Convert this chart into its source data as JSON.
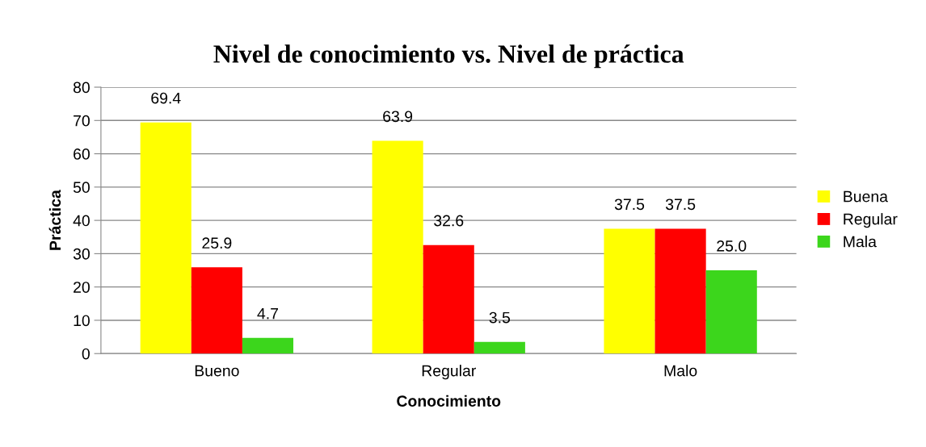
{
  "chart_data": {
    "type": "bar",
    "title": "Nivel de conocimiento vs. Nivel de práctica",
    "xlabel": "Conocimiento",
    "ylabel": "Práctica",
    "categories": [
      "Bueno",
      "Regular",
      "Malo"
    ],
    "series": [
      {
        "name": "Buena",
        "color": "#ffff00",
        "values": [
          69.4,
          63.9,
          37.5
        ],
        "value_labels": [
          "69.4",
          "63.9",
          "37.5"
        ]
      },
      {
        "name": "Regular",
        "color": "#ff0000",
        "values": [
          25.9,
          32.6,
          37.5
        ],
        "value_labels": [
          "25.9",
          "32.6",
          "37.5"
        ]
      },
      {
        "name": "Mala",
        "color": "#3cd61c",
        "values": [
          4.7,
          3.5,
          25.0
        ],
        "value_labels": [
          "4.7",
          "3.5",
          "25.0"
        ]
      }
    ],
    "ylim": [
      0,
      80
    ],
    "yticks": [
      0,
      10,
      20,
      30,
      40,
      50,
      60,
      70,
      80
    ],
    "grid": "y",
    "legend": "right"
  }
}
